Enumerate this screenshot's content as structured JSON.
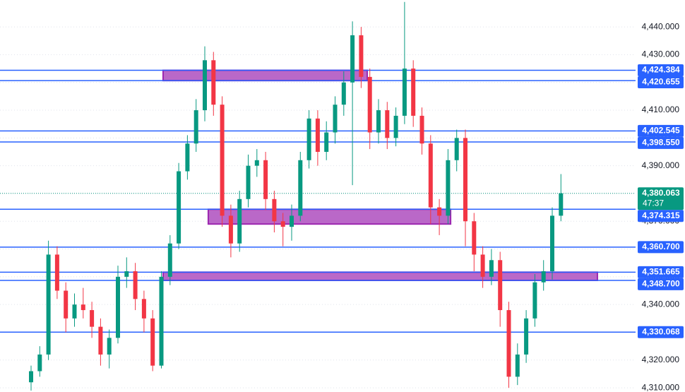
{
  "chart_data": {
    "type": "candlestick",
    "open": [
      4312,
      4316,
      4322,
      4358,
      4345,
      4335,
      4340,
      4338,
      4332,
      4322,
      4328,
      4350,
      4352,
      4342,
      4335,
      4318,
      4350,
      4362,
      4388,
      4398,
      4410,
      4428,
      4412,
      4372,
      4362,
      4378,
      4390,
      4392,
      4378,
      4370,
      4368,
      4372,
      4392,
      4407,
      4395,
      4402,
      4412,
      4420,
      4437,
      4422,
      4402,
      4410,
      4400,
      4408,
      4425,
      4408,
      4398,
      4375,
      4372,
      4392,
      4400,
      4370,
      4358,
      4350,
      4356,
      4338,
      4314,
      4322,
      4335,
      4348,
      4352,
      4372
    ],
    "high": [
      4318,
      4325,
      4363,
      4361,
      4348,
      4344,
      4346,
      4341,
      4335,
      4331,
      4354,
      4357,
      4355,
      4345,
      4338,
      4352,
      4365,
      4391,
      4401,
      4414,
      4433,
      4431,
      4415,
      4376,
      4381,
      4394,
      4396,
      4395,
      4381,
      4373,
      4376,
      4395,
      4410,
      4410,
      4406,
      4415,
      4424,
      4442,
      4440,
      4425,
      4414,
      4413,
      4411,
      4449,
      4428,
      4411,
      4401,
      4378,
      4396,
      4403,
      4403,
      4373,
      4361,
      4360,
      4359,
      4341,
      4326,
      4338,
      4351,
      4356,
      4375,
      4387
    ],
    "low": [
      4309,
      4314,
      4320,
      4342,
      4330,
      4332,
      4335,
      4328,
      4318,
      4317,
      4326,
      4346,
      4338,
      4330,
      4316,
      4317,
      4347,
      4360,
      4385,
      4395,
      4406,
      4408,
      4368,
      4357,
      4359,
      4375,
      4386,
      4374,
      4366,
      4361,
      4363,
      4370,
      4389,
      4390,
      4392,
      4398,
      4408,
      4383,
      4418,
      4396,
      4398,
      4396,
      4397,
      4405,
      4404,
      4394,
      4369,
      4365,
      4369,
      4388,
      4361,
      4352,
      4346,
      4347,
      4332,
      4310,
      4311,
      4319,
      4332,
      4345,
      4349,
      4370
    ],
    "close": [
      4316,
      4322,
      4358,
      4345,
      4335,
      4340,
      4338,
      4332,
      4322,
      4328,
      4350,
      4352,
      4342,
      4335,
      4318,
      4350,
      4362,
      4388,
      4398,
      4410,
      4428,
      4412,
      4372,
      4362,
      4378,
      4390,
      4392,
      4378,
      4370,
      4368,
      4372,
      4392,
      4407,
      4395,
      4402,
      4412,
      4420,
      4437,
      4422,
      4402,
      4410,
      4400,
      4408,
      4425,
      4408,
      4398,
      4375,
      4372,
      4392,
      4400,
      4370,
      4358,
      4350,
      4356,
      4338,
      4314,
      4322,
      4335,
      4348,
      4352,
      4372,
      4380.063
    ],
    "up_color": "#089981",
    "down_color": "#f23645",
    "ylim": [
      4308.5,
      4449.7
    ],
    "yticks": [
      {
        "value": 4310,
        "label": "4,310.000"
      },
      {
        "value": 4320,
        "label": "4,320.000"
      },
      {
        "value": 4330,
        "label": "4,330.000"
      },
      {
        "value": 4340,
        "label": "4,340.000"
      },
      {
        "value": 4350,
        "label": "4,350.000"
      },
      {
        "value": 4360,
        "label": "4,360.000"
      },
      {
        "value": 4370,
        "label": "4,370.000"
      },
      {
        "value": 4380,
        "label": "4,380.000"
      },
      {
        "value": 4390,
        "label": "4,390.000"
      },
      {
        "value": 4400,
        "label": "4,400.000"
      },
      {
        "value": 4410,
        "label": "4,410.000"
      },
      {
        "value": 4420,
        "label": "4,420.000"
      },
      {
        "value": 4430,
        "label": "4,430.000"
      },
      {
        "value": 4440,
        "label": "4,440.000"
      }
    ],
    "grid": true,
    "level_color": "#2962ff",
    "levels": [
      {
        "value": 4424.384,
        "label": "4,424.384"
      },
      {
        "value": 4420.655,
        "label": "4,420.655"
      },
      {
        "value": 4402.545,
        "label": "4,402.545"
      },
      {
        "value": 4398.55,
        "label": "4,398.550"
      },
      {
        "value": 4374.315,
        "label": "4,374.315"
      },
      {
        "value": 4360.7,
        "label": "4,360.700"
      },
      {
        "value": 4351.665,
        "label": "4,351.665"
      },
      {
        "value": 4348.7,
        "label": "4,348.700"
      },
      {
        "value": 4330.068,
        "label": "4,330.068"
      }
    ],
    "last_price": {
      "value": 4380.063,
      "label": "4,380.063"
    },
    "countdown": "47:37",
    "zone_fill": "#ba68c8",
    "zone_border": "#9c27b0",
    "zones": [
      {
        "low": 4420.655,
        "high": 4424.384,
        "start": 15.2,
        "end": 38.7
      },
      {
        "low": 4369,
        "high": 4374.315,
        "start": 20.4,
        "end": 48.3
      },
      {
        "low": 4348.7,
        "high": 4351.665,
        "start": 15.2,
        "end": 65.2
      }
    ]
  }
}
